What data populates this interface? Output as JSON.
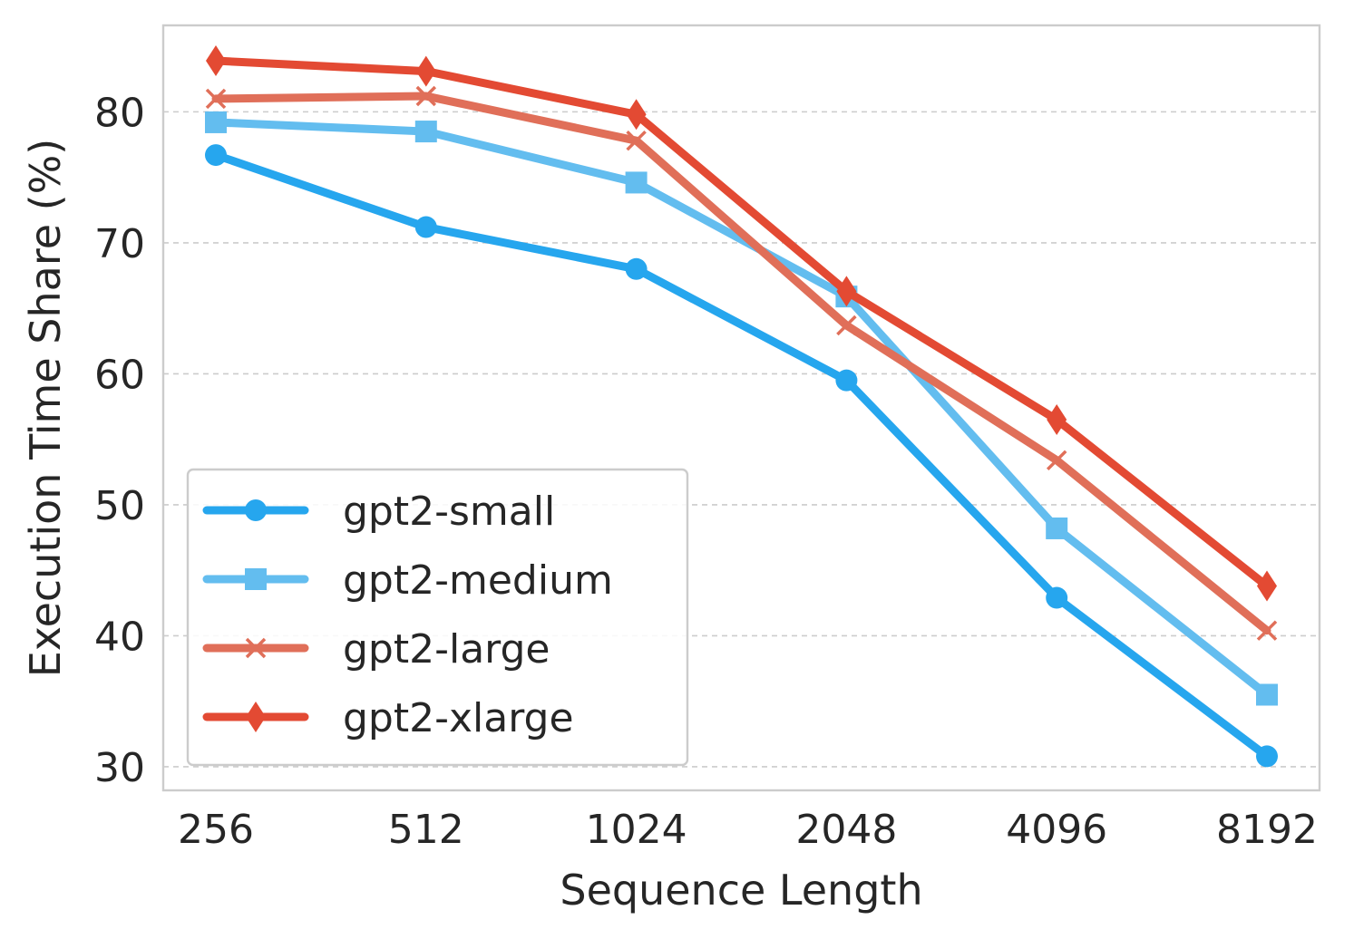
{
  "chart_data": {
    "type": "line",
    "title": "",
    "xlabel": "Sequence Length",
    "ylabel": "Execution Time Share (%)",
    "categories": [
      "256",
      "512",
      "1024",
      "2048",
      "4096",
      "8192"
    ],
    "yticks": [
      30,
      40,
      50,
      60,
      70,
      80
    ],
    "ylim": [
      28.2,
      86.6
    ],
    "grid": "horizontal dashed",
    "legend_position": "lower-left",
    "series": [
      {
        "name": "gpt2-small",
        "color": "#26a6ee",
        "marker": "circle",
        "values": [
          76.7,
          71.2,
          68.0,
          59.5,
          42.9,
          30.8
        ]
      },
      {
        "name": "gpt2-medium",
        "color": "#63bdef",
        "marker": "square",
        "values": [
          79.2,
          78.5,
          74.6,
          65.9,
          48.2,
          35.5
        ]
      },
      {
        "name": "gpt2-large",
        "color": "#e06f59",
        "marker": "x",
        "values": [
          81.0,
          81.2,
          77.8,
          63.7,
          53.4,
          40.4
        ]
      },
      {
        "name": "gpt2-xlarge",
        "color": "#e34a33",
        "marker": "diamond",
        "values": [
          83.9,
          83.1,
          79.8,
          66.3,
          56.5,
          43.8
        ]
      }
    ]
  }
}
